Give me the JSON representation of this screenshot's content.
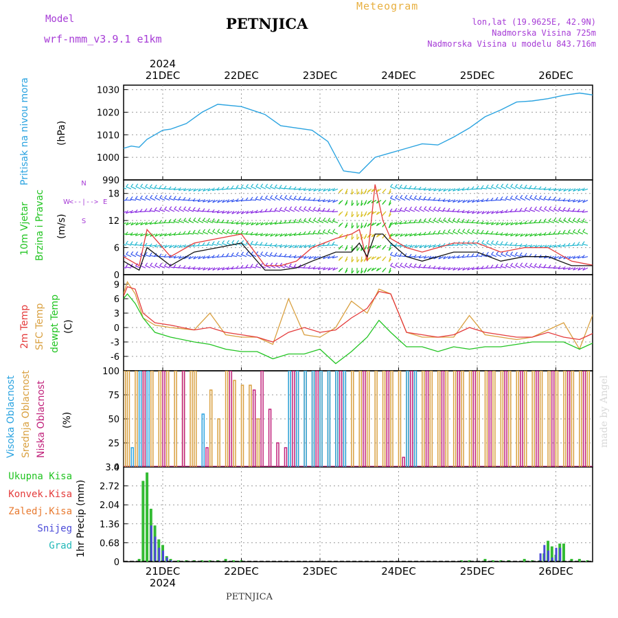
{
  "header": {
    "model_label": "Model",
    "model_name": "wrf-nmm_v3.9.1  e1km",
    "title": "PETNJICA",
    "meteogram": "Meteogram",
    "lonlat": "lon,lat (19.9625E, 42.9N)",
    "elevation": "Nadmorska Visina 725m",
    "model_elevation": "Nadmorska Visina u modelu 843.716m",
    "watermark": "made by Angel",
    "footer_title": "PETNJICA"
  },
  "colors": {
    "pressure": "#2aa3e0",
    "wind_speed": "#111111",
    "wind_gust": "#e43b3b",
    "temp_2m": "#e43b3b",
    "temp_sfc": "#d9a040",
    "dewpoint": "#22c422",
    "cloud_high": "#2aa3e0",
    "cloud_mid": "#d9a040",
    "cloud_low": "#c0207a",
    "precip_total": "#33bb33",
    "precip_snow": "#4a4ad8",
    "precip_grad": "#22b8b8",
    "label_purple": "#a63bd6",
    "label_gold": "#e8b040"
  },
  "chart_data": [
    {
      "type": "line",
      "panel": "pressure",
      "ylabel_left": "Pritisak na nivou mora",
      "unit": "(hPa)",
      "x": [
        0,
        0.1,
        0.2,
        0.3,
        0.5,
        0.6,
        0.8,
        1.0,
        1.2,
        1.5,
        1.8,
        2.0,
        2.4,
        2.6,
        2.8,
        3.0,
        3.2,
        3.4,
        3.6,
        3.8,
        4.0,
        4.2,
        4.4,
        4.6,
        4.8,
        5.0,
        5.2,
        5.4,
        5.6,
        5.8,
        6.0,
        6.1
      ],
      "values": [
        1004,
        1005,
        1004.5,
        1008,
        1012,
        1012.5,
        1015,
        1020,
        1023.5,
        1022.5,
        1019,
        1014,
        1012,
        1007,
        994,
        993,
        1000,
        1002,
        1004,
        1006,
        1005.5,
        1009,
        1013,
        1018,
        1021,
        1024.5,
        1025,
        1026,
        1027.5,
        1028.5,
        1027.5,
        1027
      ],
      "ylim": [
        990,
        1032
      ],
      "yticks": [
        990,
        1000,
        1010,
        1020,
        1030
      ],
      "ytick_labels": [
        "990",
        "1000",
        "1010",
        "1020",
        "1030"
      ],
      "top_year": "2024",
      "top_dates": [
        "21DEC",
        "22DEC",
        "23DEC",
        "24DEC",
        "25DEC",
        "26DEC"
      ]
    },
    {
      "type": "line",
      "panel": "wind",
      "ylabel_left": [
        "10m Vjetar",
        "Brzina i Pravac"
      ],
      "unit": "(m/s)",
      "compass": {
        "n": "N",
        "e": "E",
        "w": "W",
        "s": "S",
        "arrows": "<--|-->"
      },
      "series": [
        {
          "name": "speed",
          "x": [
            0,
            0.1,
            0.2,
            0.3,
            0.6,
            0.9,
            1.2,
            1.5,
            1.8,
            2.0,
            2.2,
            2.4,
            2.7,
            2.9,
            3.0,
            3.1,
            3.2,
            3.3,
            3.4,
            3.6,
            3.8,
            4.0,
            4.2,
            4.5,
            4.8,
            5.1,
            5.4,
            5.7,
            6.0,
            6.1
          ],
          "values": [
            3,
            2,
            1,
            6,
            2,
            5,
            6,
            7,
            1,
            1,
            1.5,
            3,
            5,
            5,
            7,
            4,
            9,
            9,
            7,
            4,
            3,
            4,
            5,
            5,
            3,
            4,
            4,
            2,
            2,
            2
          ]
        },
        {
          "name": "gust",
          "x": [
            0,
            0.1,
            0.2,
            0.3,
            0.6,
            0.9,
            1.2,
            1.5,
            1.8,
            2.0,
            2.2,
            2.4,
            2.7,
            2.9,
            3.0,
            3.1,
            3.2,
            3.3,
            3.4,
            3.6,
            3.8,
            4.0,
            4.2,
            4.5,
            4.8,
            5.1,
            5.4,
            5.7,
            6.0,
            6.1
          ],
          "values": [
            4,
            3,
            2,
            10,
            4,
            7,
            8,
            9,
            2,
            2,
            3,
            6,
            8,
            9,
            10,
            3,
            20,
            12,
            8,
            6,
            5,
            6,
            7,
            7,
            5,
            6,
            6,
            3,
            2,
            2
          ]
        }
      ],
      "ylim": [
        0,
        21
      ],
      "yticks": [
        0,
        6,
        12,
        18
      ],
      "ytick_labels": [
        "0",
        "6",
        "12",
        "18"
      ],
      "barb_rows": [
        1.5,
        4,
        6.5,
        9,
        11.5,
        14,
        16.5,
        19
      ]
    },
    {
      "type": "line",
      "panel": "temperature",
      "ylabel_left": [
        "2m Temp",
        "SFC Temp",
        "dewpt Temp"
      ],
      "unit": "(C)",
      "series": [
        {
          "name": "2m",
          "x": [
            0,
            0.05,
            0.15,
            0.25,
            0.4,
            0.6,
            0.9,
            1.1,
            1.3,
            1.5,
            1.7,
            1.9,
            2.1,
            2.3,
            2.5,
            2.7,
            2.9,
            3.1,
            3.25,
            3.4,
            3.6,
            3.8,
            4.0,
            4.2,
            4.4,
            4.6,
            4.8,
            5.0,
            5.2,
            5.4,
            5.6,
            5.8,
            6.0,
            6.1
          ],
          "values": [
            6.5,
            8.5,
            8,
            3,
            1,
            0.5,
            -0.5,
            0,
            -1,
            -1.5,
            -2,
            -3,
            -1,
            0,
            -1,
            -0.5,
            2,
            4,
            7.5,
            7,
            -1,
            -1.5,
            -2,
            -1.5,
            0,
            -1,
            -1.5,
            -2,
            -2,
            -1,
            -2,
            -2.5,
            -1,
            1
          ]
        },
        {
          "name": "sfc",
          "x": [
            0,
            0.05,
            0.15,
            0.25,
            0.4,
            0.6,
            0.9,
            1.1,
            1.3,
            1.5,
            1.7,
            1.9,
            2.1,
            2.3,
            2.5,
            2.7,
            2.9,
            3.1,
            3.25,
            3.4,
            3.6,
            3.8,
            4.0,
            4.2,
            4.4,
            4.6,
            4.8,
            5.0,
            5.2,
            5.4,
            5.6,
            5.8,
            6.0,
            6.1
          ],
          "values": [
            7,
            9.5,
            7,
            2,
            0.5,
            0,
            -0.5,
            3,
            -1.5,
            -2,
            -2,
            -3.5,
            6,
            -1.5,
            -2,
            0,
            5.5,
            3,
            8,
            7,
            -1,
            -2,
            -2,
            -2,
            2.5,
            -1.5,
            -2,
            -2.5,
            -2,
            -0.5,
            1,
            -4.5,
            4,
            4
          ]
        },
        {
          "name": "dewpt",
          "x": [
            0,
            0.05,
            0.15,
            0.25,
            0.4,
            0.6,
            0.9,
            1.1,
            1.3,
            1.5,
            1.7,
            1.9,
            2.1,
            2.3,
            2.5,
            2.7,
            2.9,
            3.1,
            3.25,
            3.4,
            3.6,
            3.8,
            4.0,
            4.2,
            4.4,
            4.6,
            4.8,
            5.0,
            5.2,
            5.4,
            5.6,
            5.8,
            6.0,
            6.1
          ],
          "values": [
            6,
            7,
            5,
            2,
            -1,
            -2,
            -3,
            -3.5,
            -4.5,
            -5,
            -5,
            -6.5,
            -5.5,
            -5.5,
            -4.5,
            -7.5,
            -5,
            -2,
            1.5,
            -1,
            -4,
            -4,
            -5,
            -4,
            -4.5,
            -4,
            -4,
            -3.5,
            -3,
            -3,
            -3,
            -4.5,
            -3,
            -2.5
          ]
        }
      ],
      "ylim": [
        -9,
        11
      ],
      "yticks": [
        -6,
        -3,
        0,
        3,
        6,
        9
      ],
      "ytick_labels": [
        "-6",
        "-3",
        "0",
        "3",
        "6",
        "9"
      ]
    },
    {
      "type": "bar",
      "panel": "clouds",
      "ylabel_left": [
        "Visoka Oblacnost",
        "Srednja Oblacnost",
        "Niska Oblacnost"
      ],
      "unit": "(%)",
      "series": [
        {
          "name": "high",
          "x": [
            0.1,
            0.2,
            0.3,
            1.0,
            2.1,
            2.2,
            2.3,
            2.4,
            2.5,
            2.6,
            2.7,
            2.8,
            3.6,
            3.7
          ],
          "values": [
            20,
            100,
            100,
            55,
            100,
            100,
            100,
            100,
            100,
            100,
            100,
            100,
            100,
            100
          ]
        },
        {
          "name": "mid",
          "x": [
            0,
            0.05,
            0.15,
            0.25,
            0.35,
            0.45,
            0.55,
            0.65,
            0.75,
            0.85,
            0.9,
            1.1,
            1.2,
            1.3,
            1.4,
            1.5,
            1.6,
            1.7,
            2.1,
            2.2,
            2.3,
            2.4,
            2.5,
            2.6,
            2.7,
            2.8,
            2.9,
            3.0,
            3.1,
            3.2,
            3.3,
            3.4,
            3.5,
            3.6,
            3.7,
            3.8,
            3.9,
            4.0,
            4.1,
            4.2,
            4.3,
            4.4,
            4.5,
            4.6,
            4.7,
            4.8,
            4.9,
            5.0,
            5.1,
            5.2,
            5.3,
            5.4,
            5.5,
            5.6,
            5.7,
            5.8,
            5.9,
            6.0,
            6.1
          ],
          "values": [
            100,
            100,
            100,
            100,
            100,
            100,
            100,
            100,
            100,
            100,
            100,
            80,
            50,
            100,
            90,
            85,
            85,
            50,
            100,
            100,
            100,
            100,
            100,
            100,
            100,
            100,
            100,
            100,
            100,
            100,
            100,
            100,
            100,
            100,
            100,
            100,
            100,
            100,
            100,
            100,
            100,
            100,
            100,
            100,
            100,
            100,
            100,
            100,
            100,
            100,
            100,
            100,
            100,
            100,
            100,
            100,
            100,
            100,
            90
          ]
        },
        {
          "name": "low",
          "x": [
            0.25,
            0.5,
            0.75,
            1.05,
            1.35,
            1.65,
            1.75,
            1.85,
            1.95,
            2.05,
            2.15,
            2.45,
            2.75,
            3.05,
            3.35,
            3.55,
            3.65,
            3.85,
            4.05,
            4.25,
            4.45,
            4.65,
            4.85,
            5.05,
            5.25,
            5.45,
            5.65,
            5.85,
            6.05
          ],
          "values": [
            100,
            100,
            100,
            20,
            100,
            80,
            100,
            60,
            25,
            20,
            100,
            100,
            100,
            100,
            100,
            10,
            100,
            100,
            100,
            100,
            100,
            100,
            100,
            100,
            100,
            100,
            100,
            100,
            100
          ]
        }
      ],
      "ylim": [
        0,
        100
      ],
      "yticks": [
        0,
        25,
        50,
        75,
        100
      ],
      "ytick_labels": [
        "0",
        "25",
        "50",
        "75",
        "100"
      ]
    },
    {
      "type": "bar",
      "panel": "precipitation",
      "ylabel_left": [
        "Ukupna  Kisa",
        "Konvek.Kisa",
        "Zaledj.Kisa",
        "Snijeg",
        "Grad"
      ],
      "unit": "1hr Precip (mm)",
      "series": [
        {
          "name": "total",
          "x": [
            0.2,
            0.25,
            0.3,
            0.35,
            0.4,
            0.45,
            0.5,
            0.55,
            0.6,
            0.7,
            0.8,
            0.9,
            1.0,
            1.1,
            1.2,
            1.3,
            1.4,
            1.5,
            4.3,
            4.4,
            4.6,
            4.7,
            4.8,
            4.9,
            5.1,
            5.2,
            5.3,
            5.35,
            5.4,
            5.45,
            5.5,
            5.55,
            5.6,
            5.7,
            5.8,
            5.9
          ],
          "values": [
            0.1,
            2.9,
            3.2,
            1.9,
            1.3,
            0.8,
            0.6,
            0.2,
            0.1,
            0.05,
            0.05,
            0.05,
            0.05,
            0.05,
            0.05,
            0.1,
            0.05,
            0.05,
            0.05,
            0.05,
            0.1,
            0.05,
            0.05,
            0.05,
            0.1,
            0.05,
            0.05,
            0.3,
            0.75,
            0.55,
            0.25,
            0.65,
            0.65,
            0.1,
            0.1,
            0.05
          ]
        },
        {
          "name": "snow",
          "x": [
            0.35,
            0.4,
            0.45,
            0.5,
            0.55,
            0.6,
            5.3,
            5.35,
            5.4,
            5.45,
            5.5,
            5.55
          ],
          "values": [
            1.3,
            0.9,
            0.5,
            0.4,
            0.15,
            0.05,
            0.3,
            0.6,
            0.4,
            0.15,
            0.5,
            0.5
          ]
        }
      ],
      "ylim": [
        0,
        3.4
      ],
      "yticks": [
        0,
        0.68,
        1.36,
        2.04,
        2.72,
        3.4
      ],
      "ytick_labels": [
        "0",
        "0.68",
        "1.36",
        "2.04",
        "2.72",
        "3.4"
      ],
      "bottom_dates": [
        "21DEC",
        "22DEC",
        "23DEC",
        "24DEC",
        "25DEC",
        "26DEC"
      ],
      "bottom_year": "2024"
    }
  ]
}
